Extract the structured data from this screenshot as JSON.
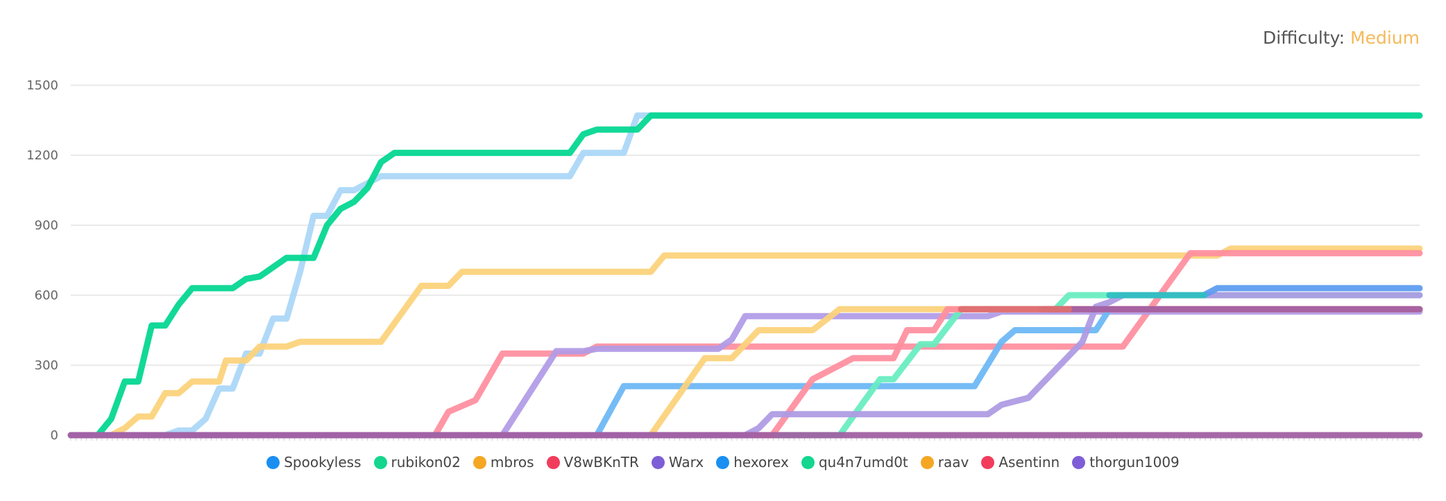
{
  "difficulty": {
    "label": "Difficulty:",
    "value": "Medium"
  },
  "chart_data": {
    "type": "line",
    "ylim": [
      0,
      1500
    ],
    "yticks": [
      0,
      300,
      600,
      900,
      1200,
      1500
    ],
    "xlim": [
      0,
      100
    ],
    "grid": true,
    "legend_placement": "bottom",
    "series": [
      {
        "name": "Spookyless",
        "color": "#aad6f7",
        "values": [
          [
            0,
            0
          ],
          [
            7,
            0
          ],
          [
            8,
            20
          ],
          [
            9,
            20
          ],
          [
            10,
            70
          ],
          [
            11,
            200
          ],
          [
            12,
            200
          ],
          [
            13,
            350
          ],
          [
            14,
            350
          ],
          [
            15,
            500
          ],
          [
            16,
            500
          ],
          [
            17,
            700
          ],
          [
            18,
            940
          ],
          [
            19,
            940
          ],
          [
            20,
            1050
          ],
          [
            21,
            1050
          ],
          [
            22,
            1080
          ],
          [
            23,
            1110
          ],
          [
            37,
            1110
          ],
          [
            38,
            1210
          ],
          [
            41,
            1210
          ],
          [
            42,
            1370
          ],
          [
            100,
            1370
          ]
        ]
      },
      {
        "name": "rubikon02",
        "color": "#00d68f",
        "values": [
          [
            0,
            0
          ],
          [
            2,
            0
          ],
          [
            3,
            70
          ],
          [
            4,
            230
          ],
          [
            5,
            230
          ],
          [
            6,
            470
          ],
          [
            7,
            470
          ],
          [
            8,
            560
          ],
          [
            9,
            630
          ],
          [
            12,
            630
          ],
          [
            13,
            670
          ],
          [
            14,
            680
          ],
          [
            15,
            720
          ],
          [
            16,
            760
          ],
          [
            18,
            760
          ],
          [
            19,
            900
          ],
          [
            20,
            970
          ],
          [
            21,
            1000
          ],
          [
            22,
            1060
          ],
          [
            23,
            1170
          ],
          [
            24,
            1210
          ],
          [
            37,
            1210
          ],
          [
            38,
            1290
          ],
          [
            39,
            1310
          ],
          [
            42,
            1310
          ],
          [
            43,
            1370
          ],
          [
            100,
            1370
          ]
        ]
      },
      {
        "name": "mbros",
        "color": "#fcd27a",
        "values": [
          [
            0,
            0
          ],
          [
            3,
            0
          ],
          [
            4,
            30
          ],
          [
            5,
            80
          ],
          [
            6,
            80
          ],
          [
            7,
            180
          ],
          [
            8,
            180
          ],
          [
            9,
            230
          ],
          [
            11,
            230
          ],
          [
            11.5,
            320
          ],
          [
            13,
            320
          ],
          [
            14,
            380
          ],
          [
            16,
            380
          ],
          [
            17,
            400
          ],
          [
            23,
            400
          ],
          [
            26,
            640
          ],
          [
            28,
            640
          ],
          [
            29,
            700
          ],
          [
            43,
            700
          ],
          [
            44,
            770
          ],
          [
            85,
            770
          ],
          [
            86,
            800
          ],
          [
            100,
            800
          ]
        ]
      },
      {
        "name": "V8wBKnTR",
        "color": "#ff8e9e",
        "values": [
          [
            0,
            0
          ],
          [
            27,
            0
          ],
          [
            28,
            100
          ],
          [
            30,
            150
          ],
          [
            32,
            350
          ],
          [
            38,
            350
          ],
          [
            39,
            380
          ],
          [
            78,
            380
          ],
          [
            83,
            780
          ],
          [
            100,
            780
          ]
        ]
      },
      {
        "name": "Warx",
        "color": "#b09be6",
        "values": [
          [
            0,
            0
          ],
          [
            32,
            0
          ],
          [
            36,
            360
          ],
          [
            38,
            360
          ],
          [
            39,
            370
          ],
          [
            48,
            370
          ],
          [
            49,
            410
          ],
          [
            50,
            510
          ],
          [
            68,
            510
          ],
          [
            69,
            530
          ],
          [
            100,
            530
          ]
        ]
      },
      {
        "name": "hexorex",
        "color": "#6ab7f5",
        "values": [
          [
            0,
            0
          ],
          [
            39,
            0
          ],
          [
            41,
            210
          ],
          [
            67,
            210
          ],
          [
            69,
            400
          ],
          [
            70,
            450
          ],
          [
            76,
            450
          ],
          [
            77,
            540
          ],
          [
            100,
            540
          ]
        ]
      },
      {
        "name": "qu4n7umd0t",
        "color": "#66edc0",
        "values": [
          [
            0,
            0
          ],
          [
            52,
            0
          ],
          [
            57,
            0
          ],
          [
            60,
            240
          ],
          [
            61,
            240
          ],
          [
            63,
            390
          ],
          [
            64,
            390
          ],
          [
            66,
            540
          ],
          [
            73,
            540
          ],
          [
            74,
            600
          ],
          [
            100,
            600
          ]
        ]
      },
      {
        "name": "raav",
        "color": "#fcd27a",
        "values": [
          [
            0,
            0
          ],
          [
            43,
            0
          ],
          [
            47,
            330
          ],
          [
            49,
            330
          ],
          [
            51,
            450
          ],
          [
            55,
            450
          ],
          [
            57,
            540
          ],
          [
            100,
            540
          ]
        ]
      },
      {
        "name": "Asentinn",
        "color": "#ff8e9e",
        "values": [
          [
            0,
            0
          ],
          [
            52,
            0
          ],
          [
            55,
            240
          ],
          [
            57,
            300
          ],
          [
            58,
            330
          ],
          [
            61,
            330
          ],
          [
            62,
            450
          ],
          [
            64,
            450
          ],
          [
            65,
            540
          ],
          [
            100,
            540
          ]
        ]
      },
      {
        "name": "thorgun1009",
        "color": "#ad9ae3",
        "values": [
          [
            0,
            0
          ],
          [
            50,
            0
          ],
          [
            51,
            30
          ],
          [
            52,
            90
          ],
          [
            68,
            90
          ],
          [
            69,
            130
          ],
          [
            71,
            160
          ],
          [
            75,
            400
          ],
          [
            76,
            550
          ],
          [
            77,
            570
          ],
          [
            78,
            600
          ],
          [
            100,
            600
          ]
        ]
      },
      {
        "name": "",
        "color": "#5b9bf0",
        "values": [
          [
            84,
            600
          ],
          [
            85,
            630
          ],
          [
            100,
            630
          ]
        ]
      },
      {
        "name": "",
        "color": "#a05fa1",
        "values": [
          [
            0,
            0
          ],
          [
            100,
            0
          ]
        ]
      },
      {
        "name": "",
        "color": "#a05fa1",
        "values": [
          [
            72,
            540
          ],
          [
            100,
            540
          ]
        ]
      },
      {
        "name": "",
        "color": "#de6f6f",
        "values": [
          [
            66,
            540
          ],
          [
            74,
            540
          ]
        ]
      },
      {
        "name": "",
        "color": "#2bc0c0",
        "values": [
          [
            77,
            600
          ],
          [
            84,
            600
          ]
        ]
      }
    ],
    "legend": [
      {
        "name": "Spookyless",
        "color": "#1a8ff2"
      },
      {
        "name": "rubikon02",
        "color": "#14d68e"
      },
      {
        "name": "mbros",
        "color": "#f5a623"
      },
      {
        "name": "V8wBKnTR",
        "color": "#f23c5c"
      },
      {
        "name": "Warx",
        "color": "#7e5ed6"
      },
      {
        "name": "hexorex",
        "color": "#1a8ff2"
      },
      {
        "name": "qu4n7umd0t",
        "color": "#14d68e"
      },
      {
        "name": "raav",
        "color": "#f5a623"
      },
      {
        "name": "Asentinn",
        "color": "#f23c5c"
      },
      {
        "name": "thorgun1009",
        "color": "#7e5ed6"
      }
    ]
  }
}
